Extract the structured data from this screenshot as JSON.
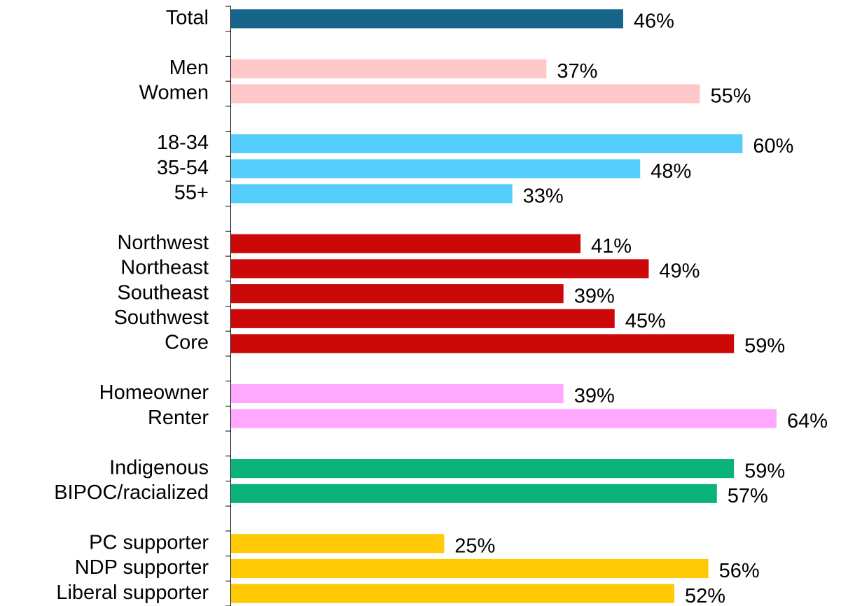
{
  "chart_data": {
    "type": "hbar",
    "categories": [
      "Total",
      null,
      "Men",
      "Women",
      null,
      "18-34",
      "35-54",
      "55+",
      null,
      "Northwest",
      "Northeast",
      "Southeast",
      "Southwest",
      "Core",
      null,
      "Homeowner",
      "Renter",
      null,
      "Indigenous",
      "BIPOC/racialized",
      null,
      "PC supporter",
      "NDP supporter",
      "Liberal supporter"
    ],
    "values": [
      46,
      null,
      37,
      55,
      null,
      60,
      48,
      33,
      null,
      41,
      49,
      39,
      45,
      59,
      null,
      39,
      64,
      null,
      59,
      57,
      null,
      25,
      56,
      52
    ],
    "value_labels": [
      "46%",
      null,
      "37%",
      "55%",
      null,
      "60%",
      "48%",
      "33%",
      null,
      "41%",
      "49%",
      "39%",
      "45%",
      "59%",
      null,
      "39%",
      "64%",
      null,
      "59%",
      "57%",
      null,
      "25%",
      "56%",
      "52%"
    ],
    "colors": [
      "#17648a",
      null,
      "#ffc8c8",
      "#ffc8c8",
      null,
      "#55cdfc",
      "#55cdfc",
      "#55cdfc",
      null,
      "#cc0808",
      "#cc0808",
      "#cc0808",
      "#cc0808",
      "#cc0808",
      null,
      "#ffa8ff",
      "#ffa8ff",
      null,
      "#0ab377",
      "#0ab377",
      null,
      "#ffc905",
      "#ffc905",
      "#ffc905"
    ],
    "xlim": [
      0,
      64
    ]
  }
}
